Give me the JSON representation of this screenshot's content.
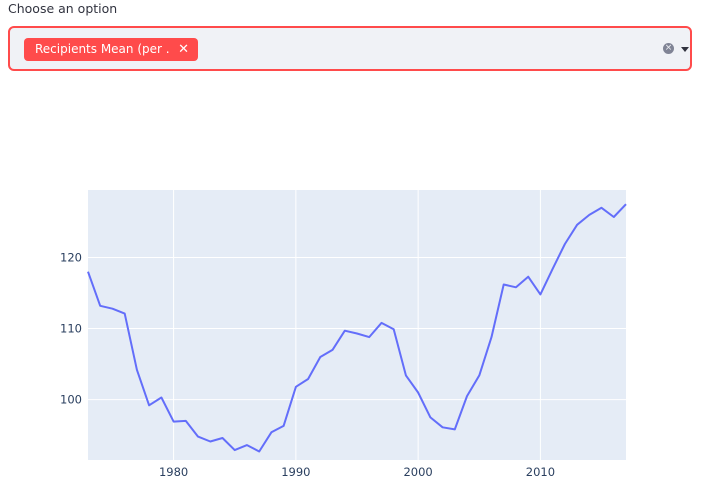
{
  "select": {
    "label": "Choose an option",
    "selected_tag": "Recipients Mean (per ...",
    "tag_close_icon": "close-icon",
    "clear_icon": "clear-circle-icon",
    "dropdown_icon": "caret-down-icon"
  },
  "colors": {
    "accent": "#ff4b4b",
    "select_bg": "#f0f2f6",
    "plot_bg": "#e5ecf6",
    "line": "#636efa"
  },
  "chart_data": {
    "type": "line",
    "title": "",
    "xlabel": "",
    "ylabel": "",
    "xlim": [
      1973,
      2017
    ],
    "ylim": [
      91.5,
      129.5
    ],
    "x_ticks": [
      1980,
      1990,
      2000,
      2010
    ],
    "y_ticks": [
      100,
      110,
      120
    ],
    "grid": true,
    "series": [
      {
        "x": [
          1973,
          1974,
          1975,
          1976,
          1977,
          1978,
          1979,
          1980,
          1981,
          1982,
          1983,
          1984,
          1985,
          1986,
          1987,
          1988,
          1989,
          1990,
          1991,
          1992,
          1993,
          1994,
          1995,
          1996,
          1997,
          1998,
          1999,
          2000,
          2001,
          2002,
          2003,
          2004,
          2005,
          2006,
          2007,
          2008,
          2009,
          2010,
          2011,
          2012,
          2013,
          2014,
          2015,
          2016,
          2017
        ],
        "y": [
          118,
          113.2,
          112.8,
          112.1,
          104.2,
          99.2,
          100.3,
          96.9,
          97,
          94.8,
          94.1,
          94.6,
          92.9,
          93.6,
          92.7,
          95.4,
          96.3,
          101.8,
          102.9,
          106,
          107,
          109.7,
          109.3,
          108.8,
          110.8,
          109.9,
          103.4,
          101,
          97.5,
          96.1,
          95.8,
          100.5,
          103.4,
          108.8,
          116.2,
          115.8,
          117.3,
          114.8,
          118.4,
          121.9,
          124.6,
          126,
          127,
          125.7,
          127.5
        ]
      }
    ]
  }
}
